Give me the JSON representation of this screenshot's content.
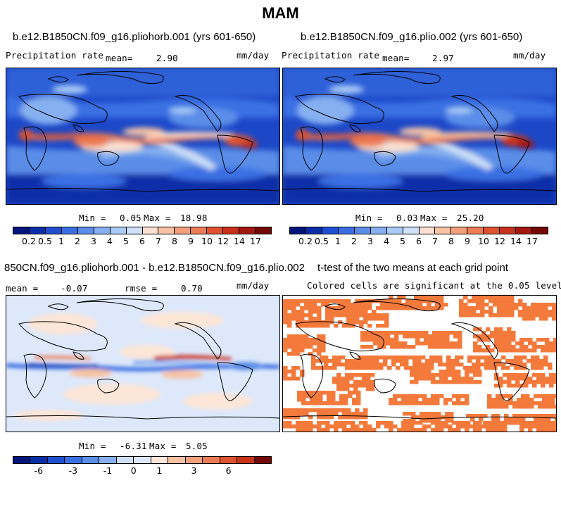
{
  "title": "MAM",
  "panels": [
    {
      "title": "b.e12.B1850CN.f09_g16.pliohorb.001 (yrs 601-650)",
      "left_label": "Precipitation rate",
      "mean_label": "mean=",
      "mean_value": "2.90",
      "units": "mm/day",
      "min_label": "Min =",
      "min_value": "0.05",
      "max_label": "Max =",
      "max_value": "18.98"
    },
    {
      "title": "b.e12.B1850CN.f09_g16.plio.002 (yrs 601-650)",
      "left_label": "Precipitation rate",
      "mean_label": "mean=",
      "mean_value": "2.97",
      "units": "mm/day",
      "min_label": "Min =",
      "min_value": "0.03",
      "max_label": "Max =",
      "max_value": "25.20"
    },
    {
      "title": "850CN.f09_g16.pliohorb.001 - b.e12.B1850CN.f09_g16.plio.002",
      "mean_label": "mean =",
      "mean_value": "-0.07",
      "rmse_label": "rmse =",
      "rmse_value": "0.70",
      "units": "mm/day",
      "min_label": "Min =",
      "min_value": "-6.31",
      "max_label": "Max =",
      "max_value": "5.05"
    },
    {
      "title": "t-test of the two means at each grid point",
      "subtitle": "Colored cells are significant at the 0.05 level"
    }
  ],
  "colorbar_precip": {
    "labels": [
      "0.2",
      "0.5",
      "1",
      "2",
      "3",
      "4",
      "5",
      "6",
      "7",
      "8",
      "9",
      "10",
      "12",
      "14",
      "17"
    ],
    "colors": [
      "#00157a",
      "#0a2ea8",
      "#1f4fd1",
      "#3a6fe3",
      "#5a8de8",
      "#86b0f0",
      "#aacbf5",
      "#cfe1f8",
      "#fbe1d1",
      "#f8c3a3",
      "#f2a07b",
      "#ec7c55",
      "#e0522f",
      "#c9321a",
      "#a3170e",
      "#730806"
    ]
  },
  "colorbar_diff": {
    "labels": [
      "-6",
      "-3",
      "-1",
      "0",
      "1",
      "3",
      "6"
    ],
    "label_positions": [
      1.5,
      3.5,
      5.5,
      7,
      8.5,
      10.5,
      12.5
    ],
    "colors": [
      "#00157a",
      "#0a2ea8",
      "#1f4fd1",
      "#3a6fe3",
      "#5a8de8",
      "#86b0f0",
      "#cfe1f8",
      "#dfe8fb",
      "#fbe6d8",
      "#f8c3a3",
      "#f2a07b",
      "#ec7c55",
      "#e0522f",
      "#c9321a",
      "#730806"
    ]
  },
  "significance_color": "#f47a3c"
}
